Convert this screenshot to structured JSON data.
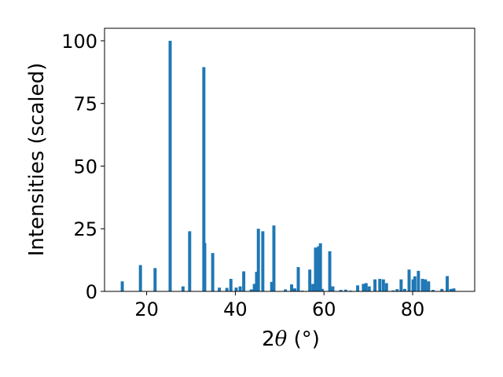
{
  "chart_data": {
    "type": "bar",
    "title": "",
    "xlabel": {
      "prefix": "2",
      "symbol": "θ",
      "suffix": " (°)"
    },
    "ylabel": "Intensities (scaled)",
    "xlim": [
      10.5,
      94.0
    ],
    "ylim": [
      0,
      105
    ],
    "xticks": [
      20,
      40,
      60,
      80
    ],
    "yticks": [
      0,
      25,
      50,
      75,
      100
    ],
    "bar_width": 0.7,
    "color": "#1f77b4",
    "grid": false,
    "legend": false,
    "x": [
      14.5,
      18.6,
      21.9,
      25.3,
      28.2,
      29.7,
      32.9,
      33.1,
      34.9,
      36.4,
      38.1,
      39.0,
      40.2,
      41.1,
      41.9,
      43.6,
      44.3,
      44.8,
      45.2,
      46.2,
      48.2,
      48.7,
      51.3,
      52.7,
      53.4,
      54.2,
      55.1,
      56.8,
      57.5,
      58.1,
      58.8,
      59.2,
      59.6,
      61.3,
      62.0,
      63.8,
      64.9,
      66.0,
      67.6,
      68.9,
      69.5,
      70.2,
      71.5,
      72.6,
      73.4,
      74.1,
      75.6,
      76.5,
      77.4,
      78.2,
      79.2,
      80.1,
      80.5,
      81.3,
      82.2,
      82.9,
      83.6,
      84.6,
      86.6,
      87.8,
      88.6,
      89.3
    ],
    "values": [
      4,
      10.5,
      9.3,
      100,
      2,
      24,
      89.5,
      19.3,
      15.3,
      1.5,
      1.4,
      5,
      1.5,
      2,
      8,
      0.8,
      3,
      7.8,
      25,
      24,
      3.8,
      26.3,
      0.8,
      2.8,
      1.2,
      9.7,
      0.3,
      8.7,
      3,
      17.5,
      18,
      19.2,
      1,
      16,
      2,
      0.6,
      0.7,
      0.3,
      2.4,
      3,
      3.3,
      2,
      4.8,
      5,
      4.8,
      3.3,
      0.4,
      0.9,
      4.8,
      1,
      8.7,
      4.8,
      6,
      8.2,
      5,
      4.8,
      4,
      0.6,
      1,
      6.1,
      1,
      1.2
    ]
  }
}
